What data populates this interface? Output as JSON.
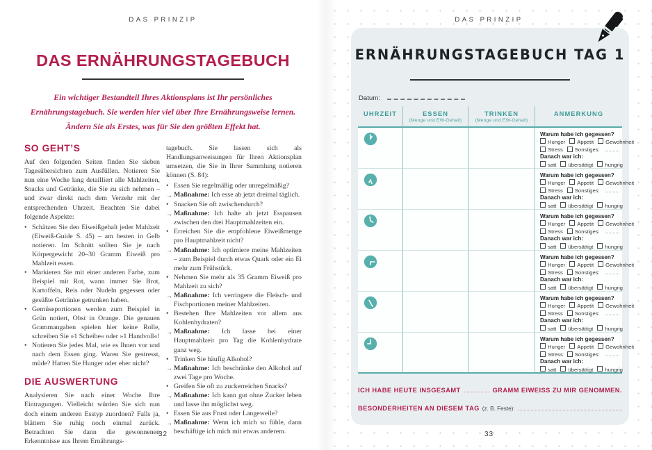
{
  "book": {
    "left_page": {
      "running_header": "DAS PRINZIP",
      "title": "DAS ERNÄHRUNGSTAGEBUCH",
      "intro_lines": [
        "Ein wichtiger Bestandteil Ihres Aktionsplans ist Ihr persönliches",
        "Ernährungstagebuch. Sie werden hier viel über Ihre Ernährungsweise lernen.",
        "Ändern Sie als Erstes, was für Sie den größten Effekt hat."
      ],
      "section1": {
        "heading": "SO GEHT’S",
        "paragraph": "Auf den folgenden Seiten finden Sie sieben Tagesübersichten zum Ausfüllen. Notieren Sie nun eine Woche lang detailliert alle Mahlzeiten, Snacks und Getränke, die Sie zu sich nehmen – und zwar direkt nach dem Verzehr mit der entsprechenden Uhrzeit. Beachten Sie dabei folgende Aspekte:",
        "bullets": [
          "Schätzen Sie den Eiweißgehalt jeder Mahlzeit (Eiweiß-Guide S. 45) – am besten in Gelb notieren. Im Schnitt sollten Sie je nach Körpergewicht 20–30 Gramm Eiweiß pro Mahlzeit essen.",
          "Markieren Sie mit einer anderen Farbe, zum Beispiel mit Rot, wann immer Sie Brot, Kartoffeln, Reis oder Nudeln gegessen oder gesüßte Getränke getrunken haben.",
          "Gemüseportionen werden zum Beispiel in Grün notiert, Obst in Orange. Die genauen Grammangaben spielen hier keine Rolle, schreiben Sie »1 Scheibe« oder »1 Handvoll«!",
          "Notieren Sie jedes Mal, wie es Ihnen vor und nach dem Essen ging. Waren Sie gestresst, müde? Hatten Sie Hunger oder eher nicht?"
        ]
      },
      "section2": {
        "heading": "DIE AUSWERTUNG",
        "paragraph": "Analysieren Sie nach einer Woche Ihre Eintragungen. Vielleicht würden Sie sich nun doch einem anderen Esstyp zuordnen? Falls ja, blättern Sie ruhig noch einmal zurück. Betrachten Sie dann die gewonnenen Erkenntnisse aus Ihrem Ernährungs-"
      },
      "column2": {
        "paragraph": "tagebuch. Sie lassen sich als Handlungsanweisungen für Ihren Aktionsplan umsetzen, die Sie in Ihrer Sammlung notieren können (S. 84):",
        "measure_label": "Maßnahme:",
        "qa": [
          {
            "question": "Essen Sie regelmäßig oder unregelmäßig?",
            "measure": "Ich esse ab jetzt dreimal täglich."
          },
          {
            "question": "Snacken Sie oft zwischendurch?",
            "measure": "Ich halte ab jetzt Esspausen zwischen den drei Hauptmahlzeiten ein."
          },
          {
            "question": "Erreichen Sie die empfohlene Eiweißmenge pro Hauptmahlzeit nicht?",
            "measure": "Ich optimiere meine Mahlzeiten – zum Beispiel durch etwas Quark oder ein Ei mehr zum Frühstück."
          },
          {
            "question": "Nehmen Sie mehr als 35 Gramm Eiweiß pro Mahlzeit zu sich?",
            "measure": "Ich verringere die Fleisch- und Fischportionen meiner Mahlzeiten."
          },
          {
            "question": "Bestehen Ihre Mahlzeiten vor allem aus Kohlenhydraten?",
            "measure": "Ich lasse bei einer Hauptmahlzeit pro Tag die Kohlenhydrate ganz weg."
          },
          {
            "question": "Trinken Sie häufig Alkohol?",
            "measure": "Ich beschränke den Alkohol auf zwei Tage pro Woche."
          },
          {
            "question": "Greifen Sie oft zu zuckerreichen Snacks?",
            "measure": "Ich kann gut ohne Zucker leben und lasse ihn möglichst weg."
          },
          {
            "question": "Essen Sie aus Frust oder Langeweile?",
            "measure": "Wenn ich mich so fühle, dann beschäftige ich mich mit etwas anderem."
          }
        ]
      },
      "page_number": "32"
    },
    "right_page": {
      "running_header": "DAS PRINZIP",
      "card": {
        "title": "ERNÄHRUNGSTAGEBUCH TAG 1",
        "date_label": "Datum:",
        "columns": [
          {
            "label": "UHRZEIT",
            "sublabel": ""
          },
          {
            "label": "ESSEN",
            "sublabel": "(Menge und EW-Gehalt)"
          },
          {
            "label": "TRINKEN",
            "sublabel": "(Menge und EW-Gehalt)"
          },
          {
            "label": "ANMERKUNG",
            "sublabel": ""
          }
        ],
        "rows": 6,
        "note_block": {
          "question1": "Warum habe ich gegessen?",
          "options_line1": [
            "Hunger",
            "Appetit",
            "Gewohnheit"
          ],
          "options_line2": [
            "Stress"
          ],
          "sonstiges_label": "Sonstiges:",
          "question2": "Danach war ich:",
          "options_line3": [
            "satt",
            "übersättigt",
            "hungrig"
          ]
        },
        "summary": {
          "prefix": "ICH HABE HEUTE INSGESAMT",
          "suffix": "GRAMM EIWEISS ZU MIR GENOMMEN."
        },
        "special": {
          "label": "BESONDERHEITEN AN DIESEM TAG",
          "hint": "(z. B. Feste):"
        }
      },
      "page_number": "33"
    },
    "colors": {
      "accent_red": "#b41e4d",
      "teal": "#3f9b99",
      "teal_line_light": "#cfe4e2",
      "teal_line_strong": "#58aca9",
      "card_background": "#e9eff1",
      "ink": "#3a3a3a"
    }
  }
}
